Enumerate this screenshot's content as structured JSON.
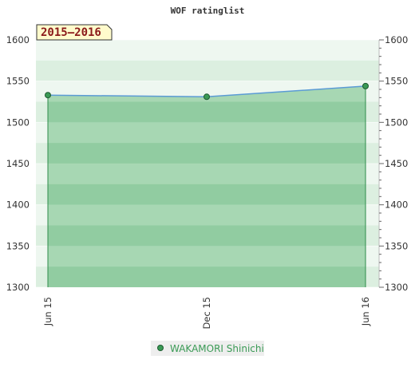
{
  "chart_data": {
    "type": "area",
    "title": "WOF ratinglist",
    "season_label": "2015–2016",
    "x_tick_labels": [
      "Jun 15",
      "Dec 15",
      "Jun 16"
    ],
    "y_ticks": [
      1300,
      1350,
      1400,
      1450,
      1500,
      1550,
      1600
    ],
    "ylim": [
      1300,
      1600
    ],
    "grid": true,
    "legend_position": "bottom-center",
    "series": [
      {
        "name": "WAKAMORI Shinichi",
        "x": [
          "Jun 15",
          "Dec 15",
          "Jun 16"
        ],
        "values": [
          1533,
          1531,
          1544
        ],
        "color": "#3a9a55"
      }
    ],
    "colors": {
      "band_light": "#eef7f0",
      "band_mid": "#dcefe0",
      "fill": "#8fcc9f",
      "line": "#5b9bd5",
      "drop_line": "#2e8b4a",
      "marker": "#3a9a55",
      "legend_bg": "#eeeeee",
      "season_bg": "#fffbcc"
    }
  }
}
